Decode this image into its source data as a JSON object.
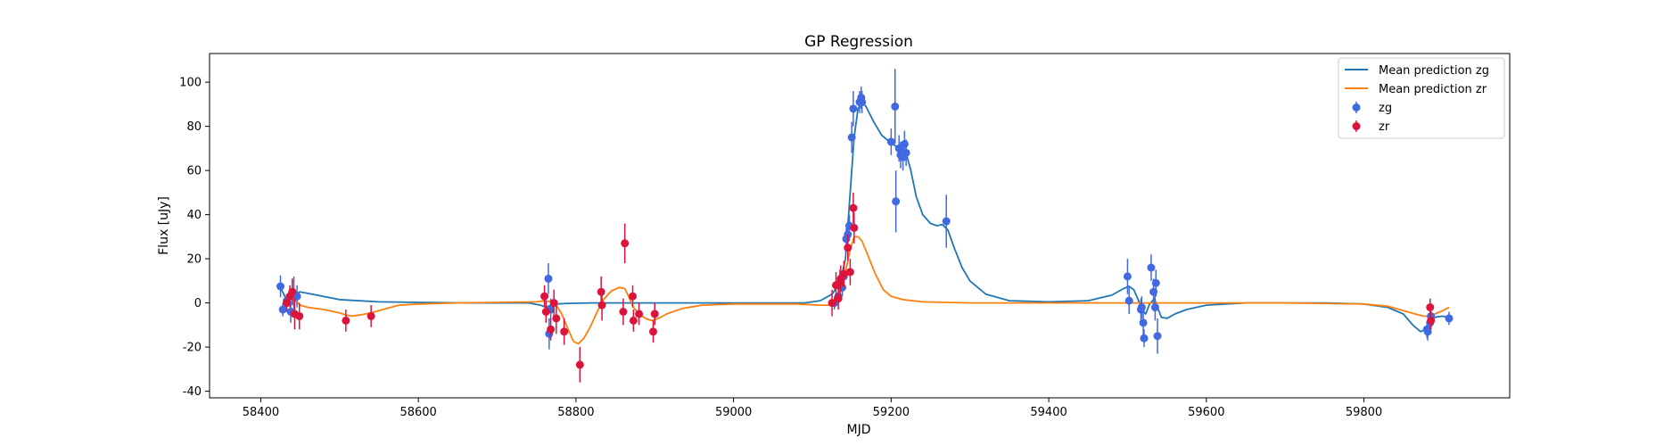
{
  "chart_data": {
    "type": "scatter",
    "title": "GP Regression",
    "xlabel": "MJD",
    "ylabel": "Flux [uJy]",
    "xlim": [
      58335,
      59985
    ],
    "ylim": [
      -43,
      113
    ],
    "xticks": [
      58400,
      58600,
      58800,
      59000,
      59200,
      59400,
      59600,
      59800
    ],
    "yticks": [
      -40,
      -20,
      0,
      20,
      40,
      60,
      80,
      100
    ],
    "legend_position": "top-right",
    "colors": {
      "zg_line": "#1f77b4",
      "zr_line": "#ff7f0e",
      "zg_points": "#4169e1",
      "zr_points": "#dc143c"
    },
    "series": [
      {
        "name": "Mean prediction zg",
        "kind": "line",
        "points": [
          [
            58425,
            7
          ],
          [
            58432,
            2
          ],
          [
            58440,
            3.5
          ],
          [
            58450,
            5
          ],
          [
            58465,
            4
          ],
          [
            58500,
            1.5
          ],
          [
            58550,
            0.5
          ],
          [
            58650,
            0
          ],
          [
            58740,
            0
          ],
          [
            58755,
            -1
          ],
          [
            58762,
            -2
          ],
          [
            58768,
            -1
          ],
          [
            58775,
            -0.5
          ],
          [
            58790,
            -0.2
          ],
          [
            58820,
            0
          ],
          [
            58900,
            0
          ],
          [
            59000,
            0
          ],
          [
            59090,
            0
          ],
          [
            59110,
            1
          ],
          [
            59125,
            4
          ],
          [
            59135,
            9
          ],
          [
            59142,
            20
          ],
          [
            59148,
            50
          ],
          [
            59153,
            75
          ],
          [
            59158,
            88
          ],
          [
            59163,
            91
          ],
          [
            59168,
            89
          ],
          [
            59178,
            82
          ],
          [
            59188,
            76
          ],
          [
            59198,
            73
          ],
          [
            59206,
            71
          ],
          [
            59212,
            70.5
          ],
          [
            59218,
            69
          ],
          [
            59225,
            60
          ],
          [
            59232,
            48
          ],
          [
            59240,
            40
          ],
          [
            59250,
            36
          ],
          [
            59258,
            35
          ],
          [
            59265,
            35.5
          ],
          [
            59272,
            33
          ],
          [
            59280,
            25
          ],
          [
            59290,
            16
          ],
          [
            59300,
            10
          ],
          [
            59320,
            4
          ],
          [
            59350,
            1
          ],
          [
            59400,
            0.5
          ],
          [
            59450,
            1
          ],
          [
            59480,
            3.5
          ],
          [
            59495,
            6.5
          ],
          [
            59502,
            7.5
          ],
          [
            59508,
            6
          ],
          [
            59514,
            1
          ],
          [
            59518,
            -3
          ],
          [
            59523,
            -5
          ],
          [
            59528,
            -0.5
          ],
          [
            59534,
            2
          ],
          [
            59538,
            -2
          ],
          [
            59543,
            -6.5
          ],
          [
            59550,
            -7
          ],
          [
            59560,
            -5
          ],
          [
            59575,
            -3
          ],
          [
            59600,
            -1
          ],
          [
            59650,
            0
          ],
          [
            59750,
            0
          ],
          [
            59800,
            -0.5
          ],
          [
            59830,
            -2
          ],
          [
            59850,
            -5
          ],
          [
            59862,
            -10
          ],
          [
            59872,
            -13
          ],
          [
            59878,
            -12
          ],
          [
            59883,
            -9
          ],
          [
            59890,
            -6.5
          ],
          [
            59900,
            -6
          ],
          [
            59906,
            -6.5
          ]
        ]
      },
      {
        "name": "Mean prediction zr",
        "kind": "line",
        "points": [
          [
            58430,
            -0.5
          ],
          [
            58436,
            3
          ],
          [
            58442,
            2
          ],
          [
            58450,
            -1
          ],
          [
            58460,
            -2
          ],
          [
            58480,
            -3
          ],
          [
            58500,
            -4.5
          ],
          [
            58508,
            -5.5
          ],
          [
            58515,
            -6
          ],
          [
            58525,
            -5.5
          ],
          [
            58540,
            -4.5
          ],
          [
            58555,
            -3
          ],
          [
            58575,
            -1
          ],
          [
            58600,
            -0.5
          ],
          [
            58650,
            0
          ],
          [
            58750,
            0.5
          ],
          [
            58760,
            1
          ],
          [
            58768,
            0.5
          ],
          [
            58775,
            -1
          ],
          [
            58782,
            -5
          ],
          [
            58790,
            -12
          ],
          [
            58797,
            -17.5
          ],
          [
            58803,
            -18.5
          ],
          [
            58810,
            -16
          ],
          [
            58818,
            -11
          ],
          [
            58827,
            -4
          ],
          [
            58835,
            1.5
          ],
          [
            58845,
            5.5
          ],
          [
            58855,
            7
          ],
          [
            58862,
            6.5
          ],
          [
            58868,
            2
          ],
          [
            58873,
            -2
          ],
          [
            58880,
            -5
          ],
          [
            58888,
            -7
          ],
          [
            58896,
            -8
          ],
          [
            58905,
            -7
          ],
          [
            58915,
            -5
          ],
          [
            58935,
            -2.5
          ],
          [
            58960,
            -1
          ],
          [
            59000,
            -0.5
          ],
          [
            59080,
            -0.5
          ],
          [
            59110,
            -1
          ],
          [
            59122,
            -1
          ],
          [
            59130,
            1
          ],
          [
            59136,
            6
          ],
          [
            59142,
            14
          ],
          [
            59148,
            24
          ],
          [
            59153,
            30
          ],
          [
            59158,
            30
          ],
          [
            59163,
            28
          ],
          [
            59170,
            22
          ],
          [
            59180,
            13
          ],
          [
            59190,
            6
          ],
          [
            59200,
            3
          ],
          [
            59215,
            1.5
          ],
          [
            59240,
            0.5
          ],
          [
            59300,
            0
          ],
          [
            59500,
            0
          ],
          [
            59700,
            0
          ],
          [
            59800,
            -0.5
          ],
          [
            59830,
            -1.5
          ],
          [
            59850,
            -3.5
          ],
          [
            59865,
            -5
          ],
          [
            59875,
            -6
          ],
          [
            59883,
            -6
          ],
          [
            59890,
            -5
          ],
          [
            59900,
            -3.5
          ],
          [
            59908,
            -2
          ]
        ]
      },
      {
        "name": "zg",
        "kind": "errorbar",
        "points": [
          [
            58425,
            7.5,
            5
          ],
          [
            58428,
            -3,
            3
          ],
          [
            58433,
            1,
            3
          ],
          [
            58438,
            -4,
            5
          ],
          [
            58442,
            4,
            8
          ],
          [
            58446,
            3,
            5
          ],
          [
            58765,
            11,
            7
          ],
          [
            58766,
            -14,
            7
          ],
          [
            58768,
            -3,
            5
          ],
          [
            59128,
            0,
            3
          ],
          [
            59133,
            3,
            3
          ],
          [
            59138,
            7,
            4
          ],
          [
            59140,
            12,
            4
          ],
          [
            59143,
            29,
            5
          ],
          [
            59145,
            31,
            5
          ],
          [
            59147,
            35,
            5
          ],
          [
            59150,
            75,
            7
          ],
          [
            59152,
            88,
            8
          ],
          [
            59160,
            91,
            5
          ],
          [
            59162,
            93,
            5
          ],
          [
            59163,
            91,
            5
          ],
          [
            59200,
            73,
            6
          ],
          [
            59205,
            89,
            17
          ],
          [
            59206,
            46,
            14
          ],
          [
            59210,
            70,
            6
          ],
          [
            59212,
            67,
            6
          ],
          [
            59215,
            66,
            6
          ],
          [
            59217,
            72,
            6
          ],
          [
            59219,
            68,
            6
          ],
          [
            59270,
            37,
            12
          ],
          [
            59500,
            12,
            8
          ],
          [
            59502,
            1,
            6
          ],
          [
            59517,
            -3,
            5
          ],
          [
            59518,
            -2,
            5
          ],
          [
            59520,
            -9,
            6
          ],
          [
            59521,
            -16,
            4
          ],
          [
            59530,
            16,
            6
          ],
          [
            59533,
            5,
            6
          ],
          [
            59535,
            -2,
            6
          ],
          [
            59536,
            9,
            6
          ],
          [
            59538,
            -15,
            8
          ],
          [
            59880,
            -12,
            4
          ],
          [
            59881,
            -13,
            4
          ],
          [
            59884,
            -9,
            4
          ],
          [
            59885,
            -6,
            4
          ],
          [
            59908,
            -7,
            3
          ]
        ]
      },
      {
        "name": "zr",
        "kind": "errorbar",
        "points": [
          [
            58433,
            0,
            4
          ],
          [
            58437,
            3,
            5
          ],
          [
            58440,
            5,
            6
          ],
          [
            58443,
            -5,
            7
          ],
          [
            58449,
            -6,
            6
          ],
          [
            58508,
            -8,
            5
          ],
          [
            58540,
            -6,
            5
          ],
          [
            58760,
            3,
            5
          ],
          [
            58762,
            -4,
            5
          ],
          [
            58768,
            -12,
            5
          ],
          [
            58772,
            0,
            6
          ],
          [
            58775,
            -7,
            7
          ],
          [
            58785,
            -13,
            6
          ],
          [
            58805,
            -28,
            8
          ],
          [
            58832,
            5,
            7
          ],
          [
            58833,
            -1,
            7
          ],
          [
            58860,
            -4,
            6
          ],
          [
            58862,
            27,
            9
          ],
          [
            58872,
            3,
            5
          ],
          [
            58873,
            -8,
            5
          ],
          [
            58880,
            -5,
            5
          ],
          [
            58898,
            -13,
            5
          ],
          [
            58900,
            -5,
            5
          ],
          [
            59125,
            0,
            6
          ],
          [
            59130,
            8,
            6
          ],
          [
            59135,
            9,
            6
          ],
          [
            59136,
            11,
            6
          ],
          [
            59140,
            13,
            6
          ],
          [
            59145,
            25,
            6
          ],
          [
            59148,
            14,
            6
          ],
          [
            59152,
            43,
            7
          ],
          [
            59153,
            34,
            7
          ],
          [
            59133,
            2,
            5
          ],
          [
            59884,
            -2,
            4
          ],
          [
            59885,
            -8,
            4
          ]
        ]
      }
    ]
  }
}
